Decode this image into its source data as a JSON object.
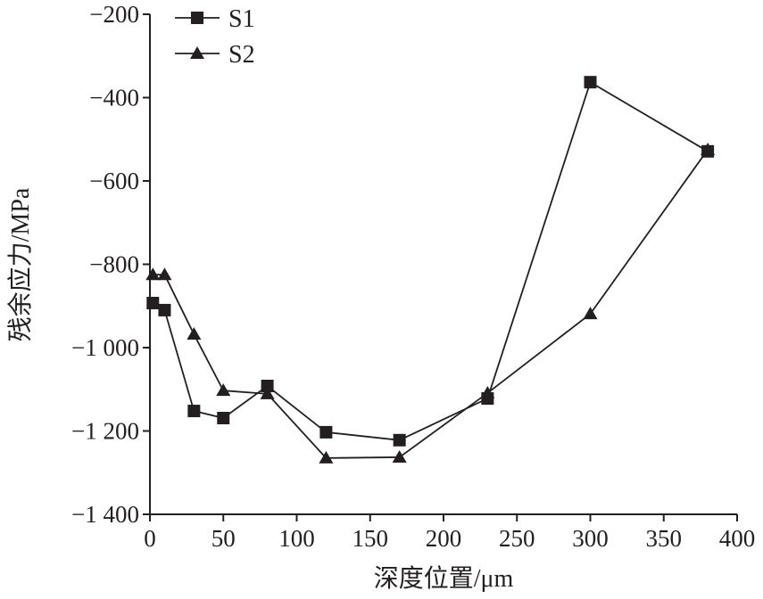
{
  "chart_data": {
    "type": "line",
    "title": "",
    "xlabel": "深度位置/μm",
    "ylabel": "残余应力/MPa",
    "xlim": [
      0,
      400
    ],
    "ylim": [
      -1400,
      -200
    ],
    "xticks": [
      0,
      50,
      100,
      150,
      200,
      250,
      300,
      350,
      400
    ],
    "xtick_labels": [
      "0",
      "50",
      "100",
      "150",
      "200",
      "250",
      "300",
      "350",
      "400"
    ],
    "yticks": [
      -200,
      -400,
      -600,
      -800,
      -1000,
      -1200,
      -1400
    ],
    "ytick_labels": [
      "−200",
      "−400",
      "−600",
      "−800",
      "−1 000",
      "−1 200",
      "−1 400"
    ],
    "grid": false,
    "legend_position": "top-left",
    "series": [
      {
        "name": "S1",
        "marker": "square",
        "x": [
          2,
          10,
          30,
          50,
          80,
          120,
          170,
          230,
          300,
          380
        ],
        "y": [
          -893,
          -910,
          -1152,
          -1169,
          -1092,
          -1203,
          -1222,
          -1122,
          -363,
          -529
        ]
      },
      {
        "name": "S2",
        "marker": "triangle",
        "x": [
          2,
          10,
          30,
          50,
          80,
          120,
          170,
          230,
          300,
          380
        ],
        "y": [
          -825,
          -825,
          -968,
          -1103,
          -1111,
          -1265,
          -1263,
          -1109,
          -919,
          -525
        ]
      }
    ],
    "colors": {
      "ink": "#231f20"
    }
  }
}
